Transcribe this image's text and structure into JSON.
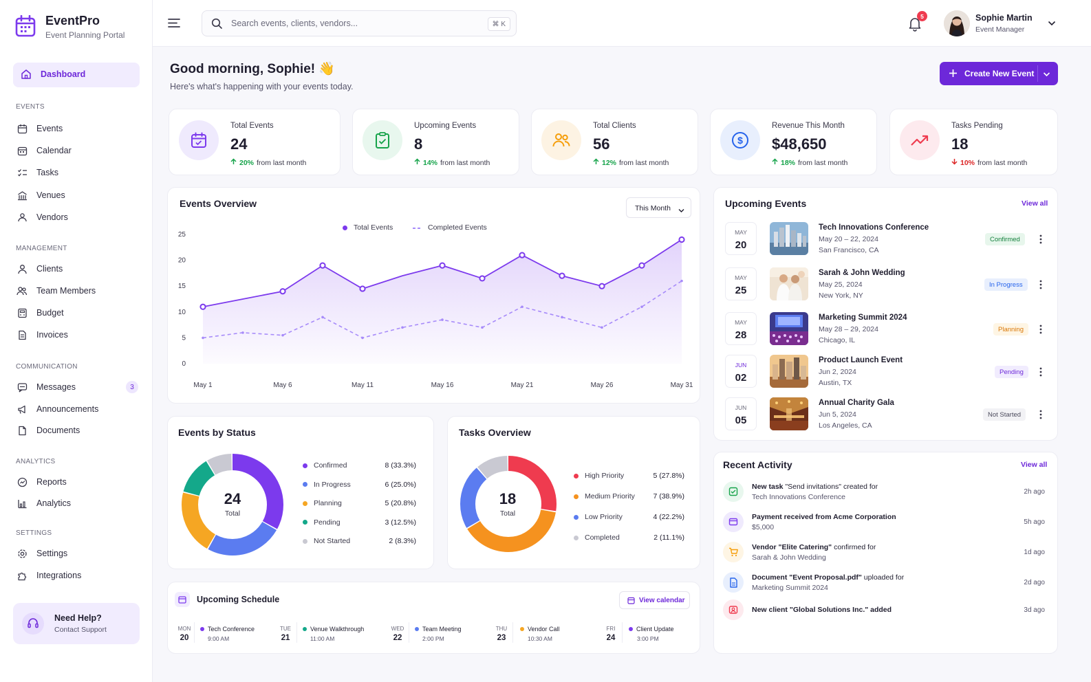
{
  "app": {
    "name": "EventPro",
    "subtitle": "Event Planning Portal"
  },
  "sidebar": {
    "dashboard": "Dashboard",
    "sections": {
      "events": {
        "title": "EVENTS",
        "items": [
          "Events",
          "Calendar",
          "Tasks",
          "Venues",
          "Vendors"
        ]
      },
      "management": {
        "title": "MANAGEMENT",
        "items": [
          "Clients",
          "Team Members",
          "Budget",
          "Invoices"
        ]
      },
      "communication": {
        "title": "COMMUNICATION",
        "items": [
          "Messages",
          "Announcements",
          "Documents"
        ],
        "messages_badge": "3"
      },
      "analytics": {
        "title": "ANALYTICS",
        "items": [
          "Reports",
          "Analytics"
        ]
      },
      "settings": {
        "title": "SETTINGS",
        "items": [
          "Settings",
          "Integrations"
        ]
      }
    },
    "help": {
      "title": "Need Help?",
      "subtitle": "Contact Support"
    }
  },
  "header": {
    "search_placeholder": "Search events, clients, vendors...",
    "shortcut": "⌘ K",
    "notifications": "5",
    "user": {
      "name": "Sophie Martin",
      "role": "Event Manager"
    }
  },
  "greeting": {
    "title": "Good morning, Sophie! 👋",
    "subtitle": "Here's what's happening with your events today."
  },
  "create_button": "Create New Event",
  "stats": [
    {
      "label": "Total Events",
      "value": "24",
      "change": "20%",
      "suffix": "from last month",
      "direction": "up"
    },
    {
      "label": "Upcoming Events",
      "value": "8",
      "change": "14%",
      "suffix": "from last month",
      "direction": "up"
    },
    {
      "label": "Total Clients",
      "value": "56",
      "change": "12%",
      "suffix": "from last month",
      "direction": "up"
    },
    {
      "label": "Revenue This Month",
      "value": "$48,650",
      "change": "18%",
      "suffix": "from last month",
      "direction": "up"
    },
    {
      "label": "Tasks Pending",
      "value": "18",
      "change": "10%",
      "suffix": "from last month",
      "direction": "down"
    }
  ],
  "overview": {
    "title": "Events Overview",
    "filter": "This Month"
  },
  "chart_data": [
    {
      "type": "line",
      "title": "Events Overview",
      "x": [
        "May 1",
        "May 3",
        "May 6",
        "May 8",
        "May 11",
        "May 13",
        "May 16",
        "May 18",
        "May 21",
        "May 23",
        "May 26",
        "May 29",
        "May 31"
      ],
      "xticks": [
        "May 1",
        "May 6",
        "May 11",
        "May 16",
        "May 21",
        "May 26",
        "May 31"
      ],
      "ylim": [
        0,
        25
      ],
      "yticks": [
        0,
        5,
        10,
        15,
        20,
        25
      ],
      "series": [
        {
          "name": "Total Events",
          "values": [
            11,
            12.5,
            14,
            19,
            14.5,
            17,
            19,
            16.5,
            21,
            17,
            15,
            19,
            24
          ],
          "style": "solid",
          "color": "#7c3aed",
          "marker_points": [
            0,
            2,
            3,
            4,
            6,
            7,
            8,
            9,
            10,
            11,
            12
          ]
        },
        {
          "name": "Completed Events",
          "values": [
            5,
            6,
            5.5,
            9,
            5,
            7,
            8.5,
            7,
            11,
            9,
            7,
            11,
            16
          ],
          "style": "dashed",
          "color": "#a78bfa"
        }
      ],
      "legend": "top-center",
      "grid": false
    },
    {
      "type": "pie",
      "title": "Events by Status",
      "center_value": "24",
      "center_label": "Total",
      "labels": [
        "Confirmed",
        "In Progress",
        "Planning",
        "Pending",
        "Not Started"
      ],
      "values": [
        8,
        6,
        5,
        3,
        2
      ],
      "display": [
        "8 (33.3%)",
        "6 (25.0%)",
        "5 (20.8%)",
        "3 (12.5%)",
        "2 (8.3%)"
      ],
      "colors": [
        "#7c3aed",
        "#5b7cf0",
        "#f5a623",
        "#14a88a",
        "#c9c9d2"
      ]
    },
    {
      "type": "pie",
      "title": "Tasks Overview",
      "center_value": "18",
      "center_label": "Total",
      "labels": [
        "High Priority",
        "Medium Priority",
        "Low Priority",
        "Completed"
      ],
      "values": [
        5,
        7,
        4,
        2
      ],
      "display": [
        "5 (27.8%)",
        "7 (38.9%)",
        "4 (22.2%)",
        "2 (11.1%)"
      ],
      "colors": [
        "#ef3b4f",
        "#f5921f",
        "#5b7cf0",
        "#c9c9d2"
      ]
    }
  ],
  "upcoming": {
    "title": "Upcoming Events",
    "view_all": "View all",
    "items": [
      {
        "month": "MAY",
        "day": "20",
        "name": "Tech Innovations Conference",
        "dates": "May 20 – 22, 2024",
        "location": "San Francisco, CA",
        "status": "Confirmed"
      },
      {
        "month": "MAY",
        "day": "25",
        "name": "Sarah & John Wedding",
        "dates": "May 25, 2024",
        "location": "New York, NY",
        "status": "In Progress"
      },
      {
        "month": "MAY",
        "day": "28",
        "name": "Marketing Summit 2024",
        "dates": "May 28 – 29, 2024",
        "location": "Chicago, IL",
        "status": "Planning"
      },
      {
        "month": "JUN",
        "day": "02",
        "name": "Product Launch Event",
        "dates": "Jun 2, 2024",
        "location": "Austin, TX",
        "status": "Pending"
      },
      {
        "month": "JUN",
        "day": "05",
        "name": "Annual Charity Gala",
        "dates": "Jun 5, 2024",
        "location": "Los Angeles, CA",
        "status": "Not Started"
      }
    ]
  },
  "activity": {
    "title": "Recent Activity",
    "view_all": "View all",
    "items": [
      {
        "bold": "New task",
        "text": " \"Send invitations\" created for",
        "line2": "Tech Innovations Conference",
        "time": "2h ago"
      },
      {
        "bold": "Payment received from Acme Corporation",
        "text": "",
        "line2": "$5,000",
        "time": "5h ago"
      },
      {
        "bold": "Vendor \"Elite Catering\"",
        "text": " confirmed for",
        "line2": "Sarah & John Wedding",
        "time": "1d ago"
      },
      {
        "bold": "Document \"Event Proposal.pdf\"",
        "text": " uploaded for",
        "line2": "Marketing Summit 2024",
        "time": "2d ago"
      },
      {
        "bold": "New client \"Global Solutions Inc.\" added",
        "text": "",
        "line2": "",
        "time": "3d ago"
      }
    ]
  },
  "schedule": {
    "title": "Upcoming Schedule",
    "view_calendar": "View calendar",
    "items": [
      {
        "dow": "MON",
        "day": "20",
        "title": "Tech Conference",
        "time": "9:00 AM",
        "color": "#7c3aed"
      },
      {
        "dow": "TUE",
        "day": "21",
        "title": "Venue Walkthrough",
        "time": "11:00 AM",
        "color": "#14a88a"
      },
      {
        "dow": "WED",
        "day": "22",
        "title": "Team Meeting",
        "time": "2:00 PM",
        "color": "#5b7cf0"
      },
      {
        "dow": "THU",
        "day": "23",
        "title": "Vendor Call",
        "time": "10:30 AM",
        "color": "#f5a623"
      },
      {
        "dow": "FRI",
        "day": "24",
        "title": "Client Update",
        "time": "3:00 PM",
        "color": "#7c3aed"
      }
    ]
  }
}
